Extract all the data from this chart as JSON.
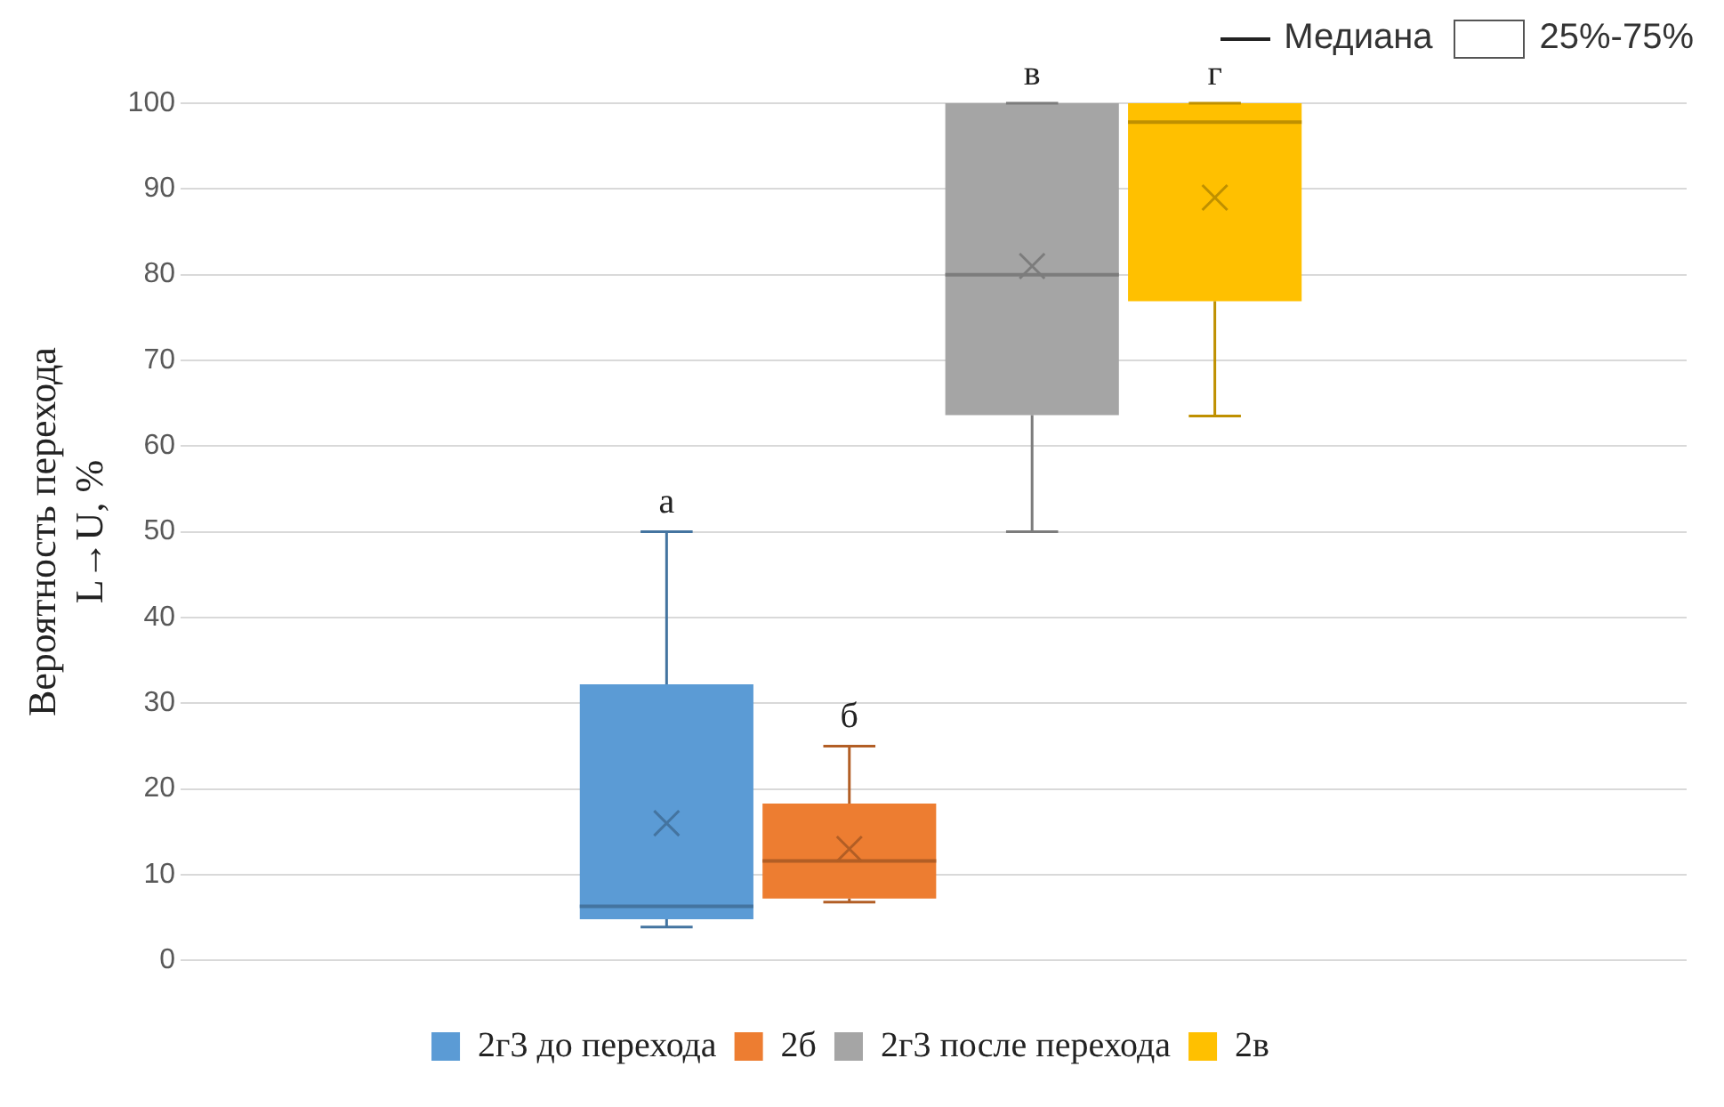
{
  "chart_data": {
    "type": "box",
    "ylabel": "Вероятность перехода\nL→U, %",
    "categories": [
      null
    ],
    "ylim": [
      0,
      100
    ],
    "yticks": [
      0,
      10,
      20,
      30,
      40,
      50,
      60,
      70,
      80,
      90,
      100
    ],
    "grid": "y",
    "legend": "bottom",
    "series": [
      {
        "name": "2г3 до перехода",
        "color": "#5b9bd5",
        "boxes": [
          {
            "low": 3.9,
            "q1": 4.8,
            "median": 6.3,
            "q3": 32.2,
            "high": 50,
            "mean": 16
          }
        ]
      },
      {
        "name": "2б",
        "color": "#ed7d31",
        "boxes": [
          {
            "low": 6.8,
            "q1": 7.2,
            "median": 11.6,
            "q3": 18.3,
            "high": 25,
            "mean": 13
          }
        ]
      },
      {
        "name": "2г3 после перехода",
        "color": "#a5a5a5",
        "boxes": [
          {
            "low": 50,
            "q1": 63.6,
            "median": 80,
            "q3": 100,
            "high": 100,
            "mean": 81
          }
        ]
      },
      {
        "name": "2в",
        "color": "#ffc000",
        "boxes": [
          {
            "low": 63.5,
            "q1": 76.9,
            "median": 97.8,
            "q3": 100,
            "high": 100,
            "mean": 89
          }
        ]
      }
    ],
    "annotations": [
      {
        "text": "а",
        "y": 50
      },
      {
        "text": "б",
        "y": 25
      },
      {
        "text": "в",
        "y": 100
      },
      {
        "text": "г",
        "y": 100
      },
      "Медиана",
      "25%-75%"
    ]
  }
}
